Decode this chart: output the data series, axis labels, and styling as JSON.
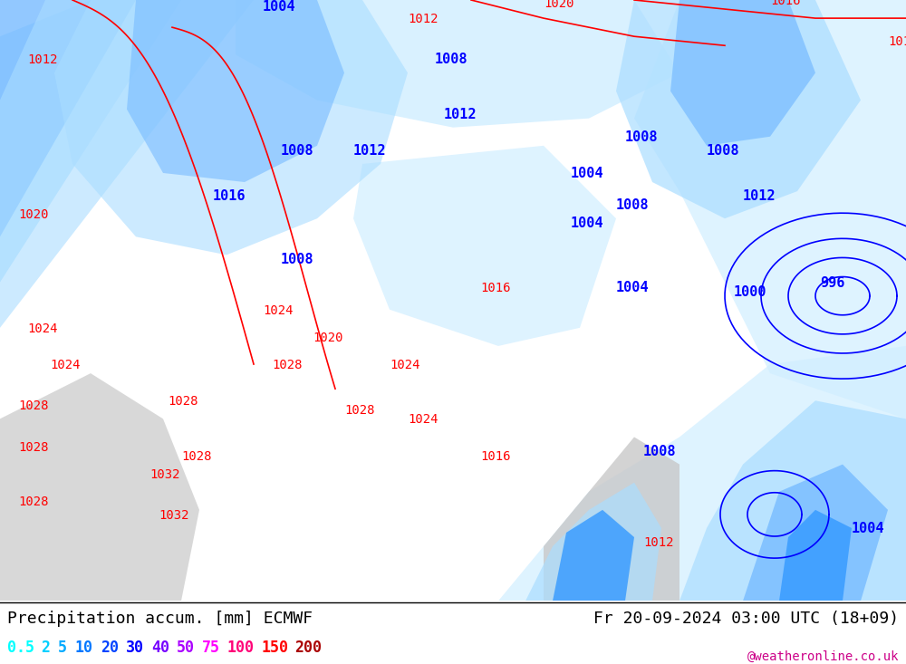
{
  "title_left": "Precipitation accum. [mm] ECMWF",
  "title_right": "Fr 20-09-2024 03:00 UTC (18+09)",
  "credit": "@weatheronline.co.uk",
  "legend_values": [
    "0.5",
    "2",
    "5",
    "10",
    "20",
    "30",
    "40",
    "50",
    "75",
    "100",
    "150",
    "200"
  ],
  "legend_colors": [
    "#00ffff",
    "#00d0ff",
    "#00aaff",
    "#0077ff",
    "#0044ff",
    "#0000ff",
    "#7700ff",
    "#aa00ff",
    "#ff00ff",
    "#ff0077",
    "#ff0000",
    "#aa0000"
  ],
  "bg_color": "#ffffff",
  "map_bg": "#c8e6a0",
  "sea_color": "#d0eeff",
  "land_gray": "#c8c8c8",
  "precip_light": "#aaddff",
  "precip_med": "#77bbff",
  "precip_dark": "#3399ff",
  "precip_vdark": "#1155cc",
  "isobar_red": "#ff0000",
  "isobar_blue": "#0000ff",
  "bottom_bar_bg": "#ffffff",
  "bottom_text_color": "#000000",
  "figsize": [
    10.0,
    7.33
  ],
  "dpi": 100
}
